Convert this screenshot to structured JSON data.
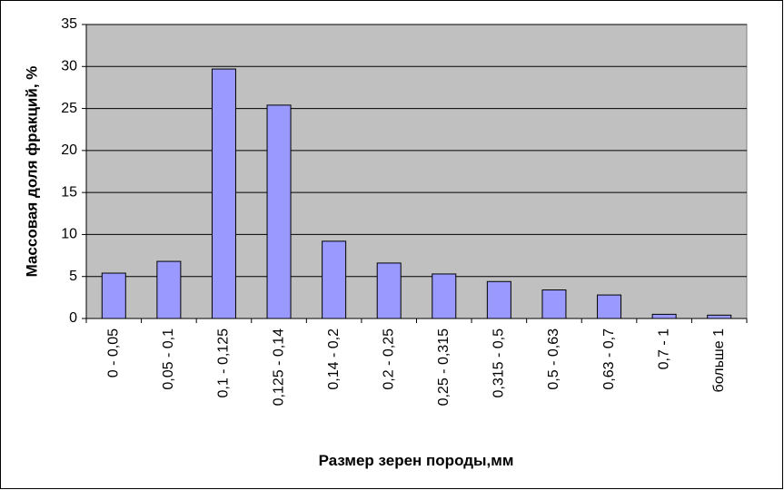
{
  "chart_data": {
    "type": "bar",
    "x_label": "Размер зерен породы,мм",
    "y_label": "Массовая доля фракций, %",
    "categories": [
      "0 - 0,05",
      "0,05 - 0,1",
      "0,1 - 0,125",
      "0,125 - 0,14",
      "0,14 - 0,2",
      "0,2 - 0,25",
      "0,25 - 0,315",
      "0,315 - 0,5",
      "0,5 - 0,63",
      "0,63 - 0,7",
      "0,7 - 1",
      "больше 1"
    ],
    "values": [
      5.4,
      6.8,
      29.7,
      25.4,
      9.2,
      6.6,
      5.3,
      4.4,
      3.4,
      2.8,
      0.5,
      0.4
    ],
    "color": "#9999ff",
    "ylim": [
      0,
      35
    ],
    "yticks": [
      0,
      5,
      10,
      15,
      20,
      25,
      30,
      35
    ],
    "grid": true
  }
}
